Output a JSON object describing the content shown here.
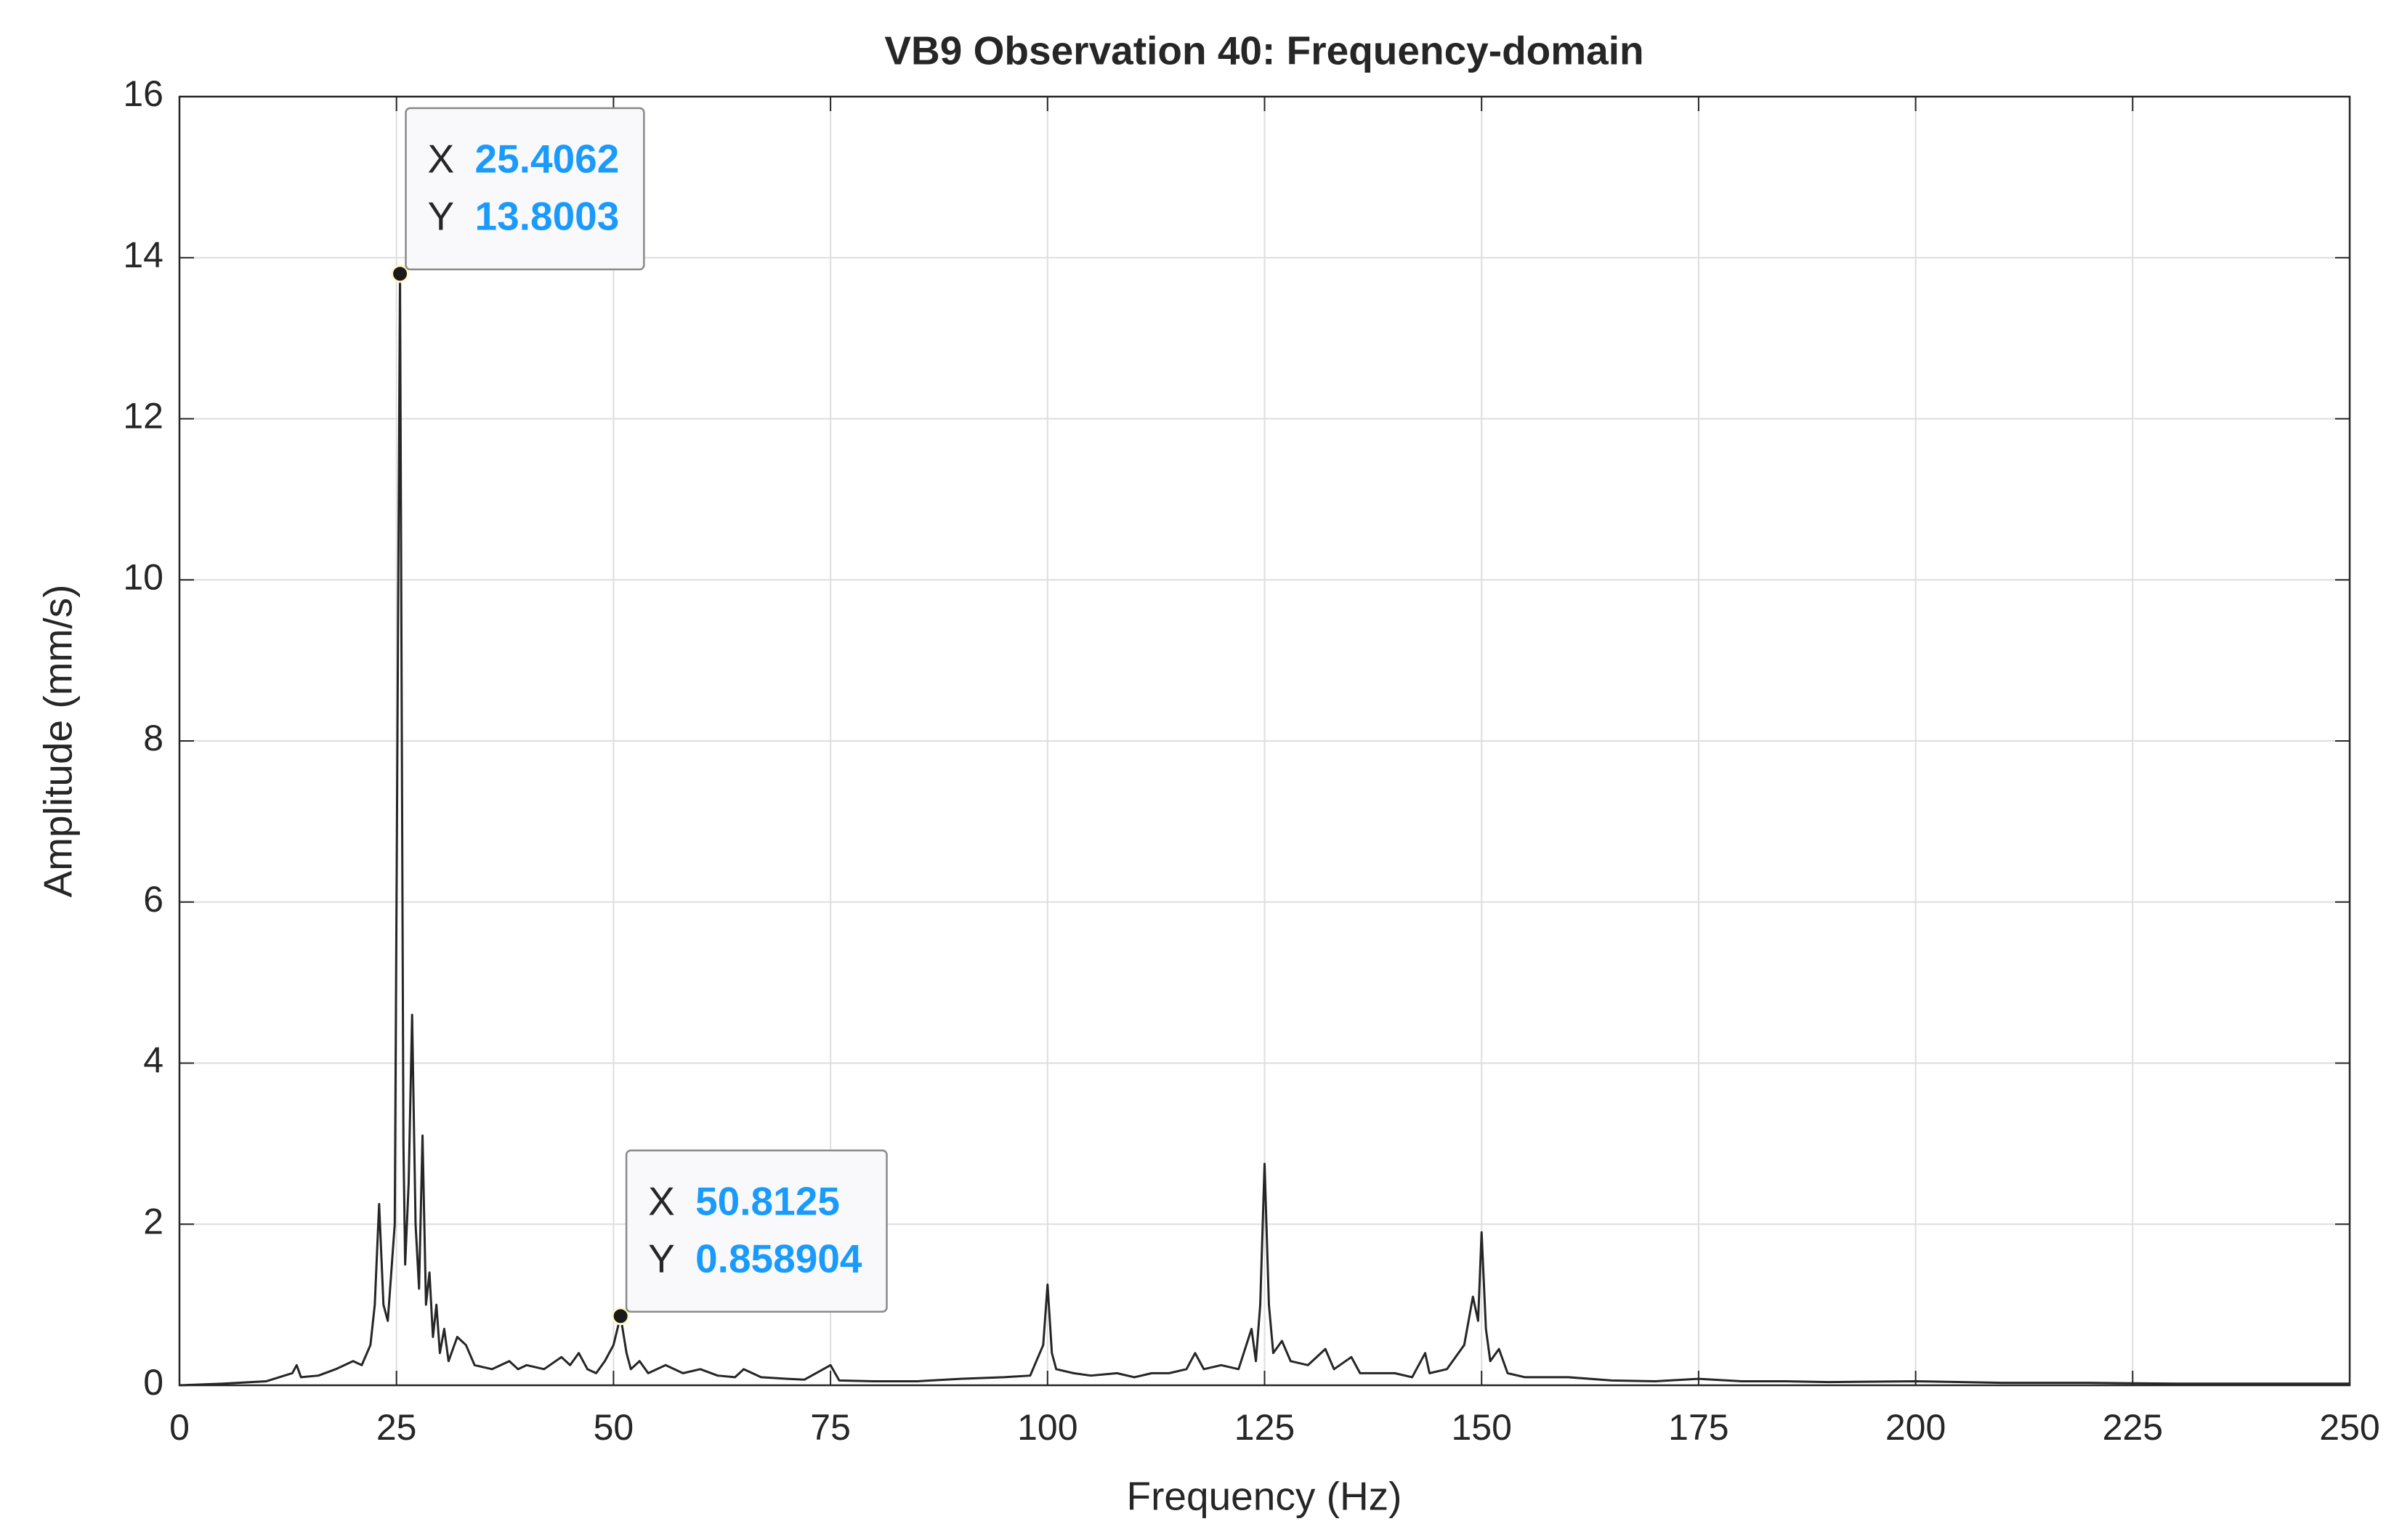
{
  "chart_data": {
    "type": "line",
    "title": "VB9 Observation 40: Frequency-domain",
    "xlabel": "Frequency (Hz)",
    "ylabel": "Amplitude (mm/s)",
    "xlim": [
      0,
      250
    ],
    "ylim": [
      0,
      16
    ],
    "xticks": [
      0,
      25,
      50,
      75,
      100,
      125,
      150,
      175,
      200,
      225,
      250
    ],
    "yticks": [
      0,
      2,
      4,
      6,
      8,
      10,
      12,
      14,
      16
    ],
    "grid": true,
    "series": [
      {
        "color": "#262626",
        "x": [
          0,
          5,
          10,
          13,
          13.5,
          14,
          16,
          18,
          20,
          21,
          22,
          22.5,
          23,
          23.5,
          24,
          24.8,
          25.4062,
          25.8,
          26,
          26.4,
          26.8,
          27.2,
          27.6,
          28,
          28.4,
          28.8,
          29.2,
          29.6,
          30,
          30.5,
          31,
          32,
          33,
          34,
          36,
          38,
          39,
          40,
          42,
          44,
          45,
          46,
          47,
          48,
          49,
          50,
          50.8125,
          51.5,
          52,
          53,
          54,
          56,
          58,
          60,
          62,
          64,
          65,
          67,
          70,
          72,
          75,
          76,
          80,
          85,
          90,
          95,
          98,
          99.5,
          100,
          100.5,
          101,
          103,
          105,
          108,
          110,
          112,
          114,
          116,
          117,
          118,
          120,
          122,
          123.5,
          124,
          124.5,
          125,
          125.5,
          126,
          127,
          128,
          130,
          132,
          133,
          135,
          136,
          138,
          140,
          142,
          143.5,
          144,
          146,
          148,
          149,
          149.6,
          150,
          150.5,
          151,
          152,
          153,
          155,
          160,
          165,
          170,
          175,
          180,
          185,
          190,
          200,
          210,
          220,
          230,
          240,
          250
        ],
        "values": [
          0,
          0.02,
          0.05,
          0.15,
          0.25,
          0.1,
          0.12,
          0.2,
          0.3,
          0.25,
          0.5,
          1.0,
          2.25,
          1.0,
          0.8,
          2.0,
          13.8003,
          3.0,
          1.5,
          2.5,
          4.6,
          2.0,
          1.2,
          3.1,
          1.0,
          1.4,
          0.6,
          1.0,
          0.4,
          0.7,
          0.3,
          0.6,
          0.5,
          0.25,
          0.2,
          0.3,
          0.2,
          0.25,
          0.2,
          0.35,
          0.25,
          0.4,
          0.2,
          0.15,
          0.3,
          0.5,
          0.858904,
          0.4,
          0.2,
          0.3,
          0.15,
          0.25,
          0.15,
          0.2,
          0.12,
          0.1,
          0.2,
          0.1,
          0.08,
          0.07,
          0.25,
          0.06,
          0.05,
          0.05,
          0.08,
          0.1,
          0.12,
          0.5,
          1.25,
          0.4,
          0.2,
          0.15,
          0.12,
          0.15,
          0.1,
          0.15,
          0.15,
          0.2,
          0.4,
          0.2,
          0.25,
          0.2,
          0.7,
          0.3,
          1.0,
          2.75,
          1.0,
          0.4,
          0.55,
          0.3,
          0.25,
          0.45,
          0.2,
          0.35,
          0.15,
          0.15,
          0.15,
          0.1,
          0.4,
          0.15,
          0.2,
          0.5,
          1.1,
          0.8,
          1.9,
          0.7,
          0.3,
          0.45,
          0.15,
          0.1,
          0.1,
          0.06,
          0.05,
          0.08,
          0.05,
          0.05,
          0.04,
          0.05,
          0.03,
          0.03,
          0.02,
          0.02,
          0.02
        ]
      }
    ],
    "datatip_labels": [
      "X",
      "Y"
    ],
    "datatips": [
      {
        "x": 25.4062,
        "y": 13.8003
      },
      {
        "x": 50.8125,
        "y": 0.858904
      }
    ]
  }
}
